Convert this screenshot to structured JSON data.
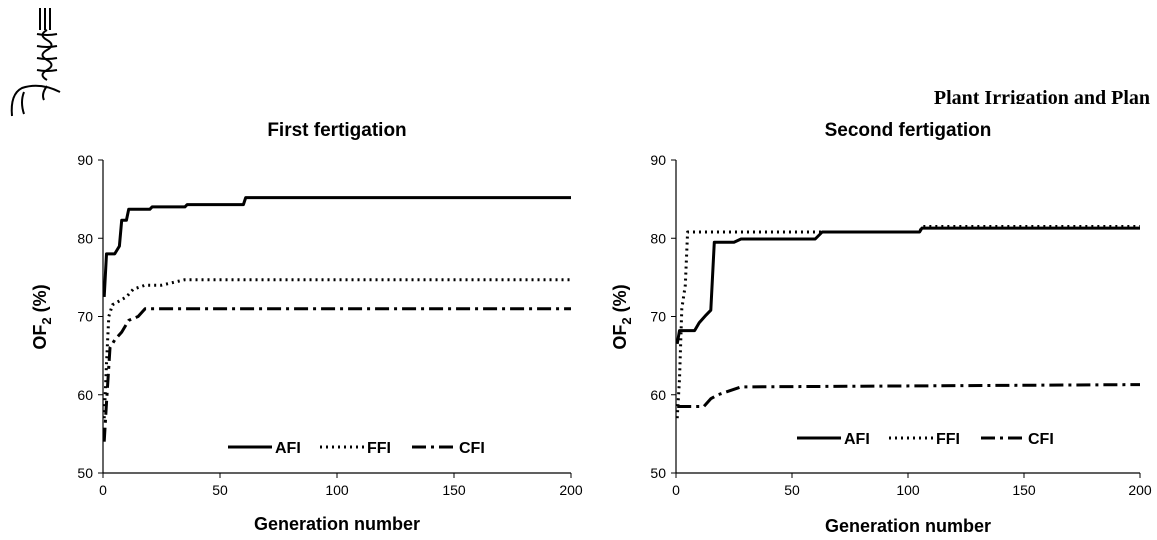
{
  "header": {
    "logo_icon": "wheat-logo-icon",
    "partial_text": "Plant Irrigation and Plan"
  },
  "chart_data": [
    {
      "type": "line",
      "title": "First fertigation",
      "xlabel": "Generation number",
      "ylabel_main": "OF",
      "ylabel_sub": "2",
      "ylabel_unit": " (%)",
      "xlim": [
        0,
        200
      ],
      "ylim": [
        50,
        90
      ],
      "xticks": [
        "0",
        "50",
        "100",
        "150",
        "200"
      ],
      "yticks": [
        "50",
        "60",
        "70",
        "80",
        "90"
      ],
      "legend_position": "bottom-center",
      "grid": false,
      "series": [
        {
          "name": "AFI",
          "style": "solid",
          "points": [
            [
              0.5,
              72.5
            ],
            [
              1.5,
              78
            ],
            [
              5,
              78
            ],
            [
              7,
              79
            ],
            [
              8,
              82.3
            ],
            [
              10,
              82.3
            ],
            [
              11,
              83.7
            ],
            [
              20,
              83.7
            ],
            [
              21,
              84
            ],
            [
              35,
              84
            ],
            [
              36,
              84.3
            ],
            [
              60,
              84.3
            ],
            [
              61,
              85.2
            ],
            [
              200,
              85.2
            ]
          ]
        },
        {
          "name": "FFI",
          "style": "dotted",
          "points": [
            [
              0.5,
              57
            ],
            [
              1.5,
              64
            ],
            [
              2.5,
              70
            ],
            [
              4,
              71.5
            ],
            [
              7,
              72
            ],
            [
              10,
              72.5
            ],
            [
              13,
              73.5
            ],
            [
              18,
              74
            ],
            [
              25,
              74
            ],
            [
              35,
              74.7
            ],
            [
              200,
              74.7
            ]
          ]
        },
        {
          "name": "CFI",
          "style": "dashdot",
          "points": [
            [
              0.5,
              54
            ],
            [
              1.5,
              59
            ],
            [
              3,
              66
            ],
            [
              5,
              67
            ],
            [
              8,
              68
            ],
            [
              11,
              69.5
            ],
            [
              15,
              70
            ],
            [
              18,
              71
            ],
            [
              200,
              71
            ]
          ]
        }
      ]
    },
    {
      "type": "line",
      "title": "Second fertigation",
      "xlabel": "Generation number",
      "ylabel_main": "OF",
      "ylabel_sub": "2",
      "ylabel_unit": " (%)",
      "xlim": [
        0,
        200
      ],
      "ylim": [
        50,
        90
      ],
      "xticks": [
        "0",
        "50",
        "100",
        "150",
        "200"
      ],
      "yticks": [
        "50",
        "60",
        "70",
        "80",
        "90"
      ],
      "legend_position": "bottom-center",
      "grid": false,
      "series": [
        {
          "name": "AFI",
          "style": "solid",
          "points": [
            [
              0.5,
              66.5
            ],
            [
              1.5,
              68.2
            ],
            [
              8,
              68.2
            ],
            [
              10,
              69.2
            ],
            [
              13,
              70.2
            ],
            [
              15,
              70.8
            ],
            [
              16.5,
              79.5
            ],
            [
              25,
              79.5
            ],
            [
              28,
              79.9
            ],
            [
              60,
              79.9
            ],
            [
              63,
              80.8
            ],
            [
              105,
              80.8
            ],
            [
              106,
              81.3
            ],
            [
              200,
              81.3
            ]
          ]
        },
        {
          "name": "FFI",
          "style": "dotted",
          "points": [
            [
              0.5,
              57
            ],
            [
              1.5,
              62
            ],
            [
              2.5,
              71
            ],
            [
              4,
              74
            ],
            [
              5,
              80.8
            ],
            [
              105,
              80.8
            ],
            [
              106,
              81.5
            ],
            [
              200,
              81.5
            ]
          ]
        },
        {
          "name": "CFI",
          "style": "dashdot",
          "points": [
            [
              0.5,
              58.5
            ],
            [
              12,
              58.5
            ],
            [
              15,
              59.5
            ],
            [
              18,
              60
            ],
            [
              28,
              61
            ],
            [
              200,
              61.3
            ]
          ]
        }
      ]
    }
  ]
}
